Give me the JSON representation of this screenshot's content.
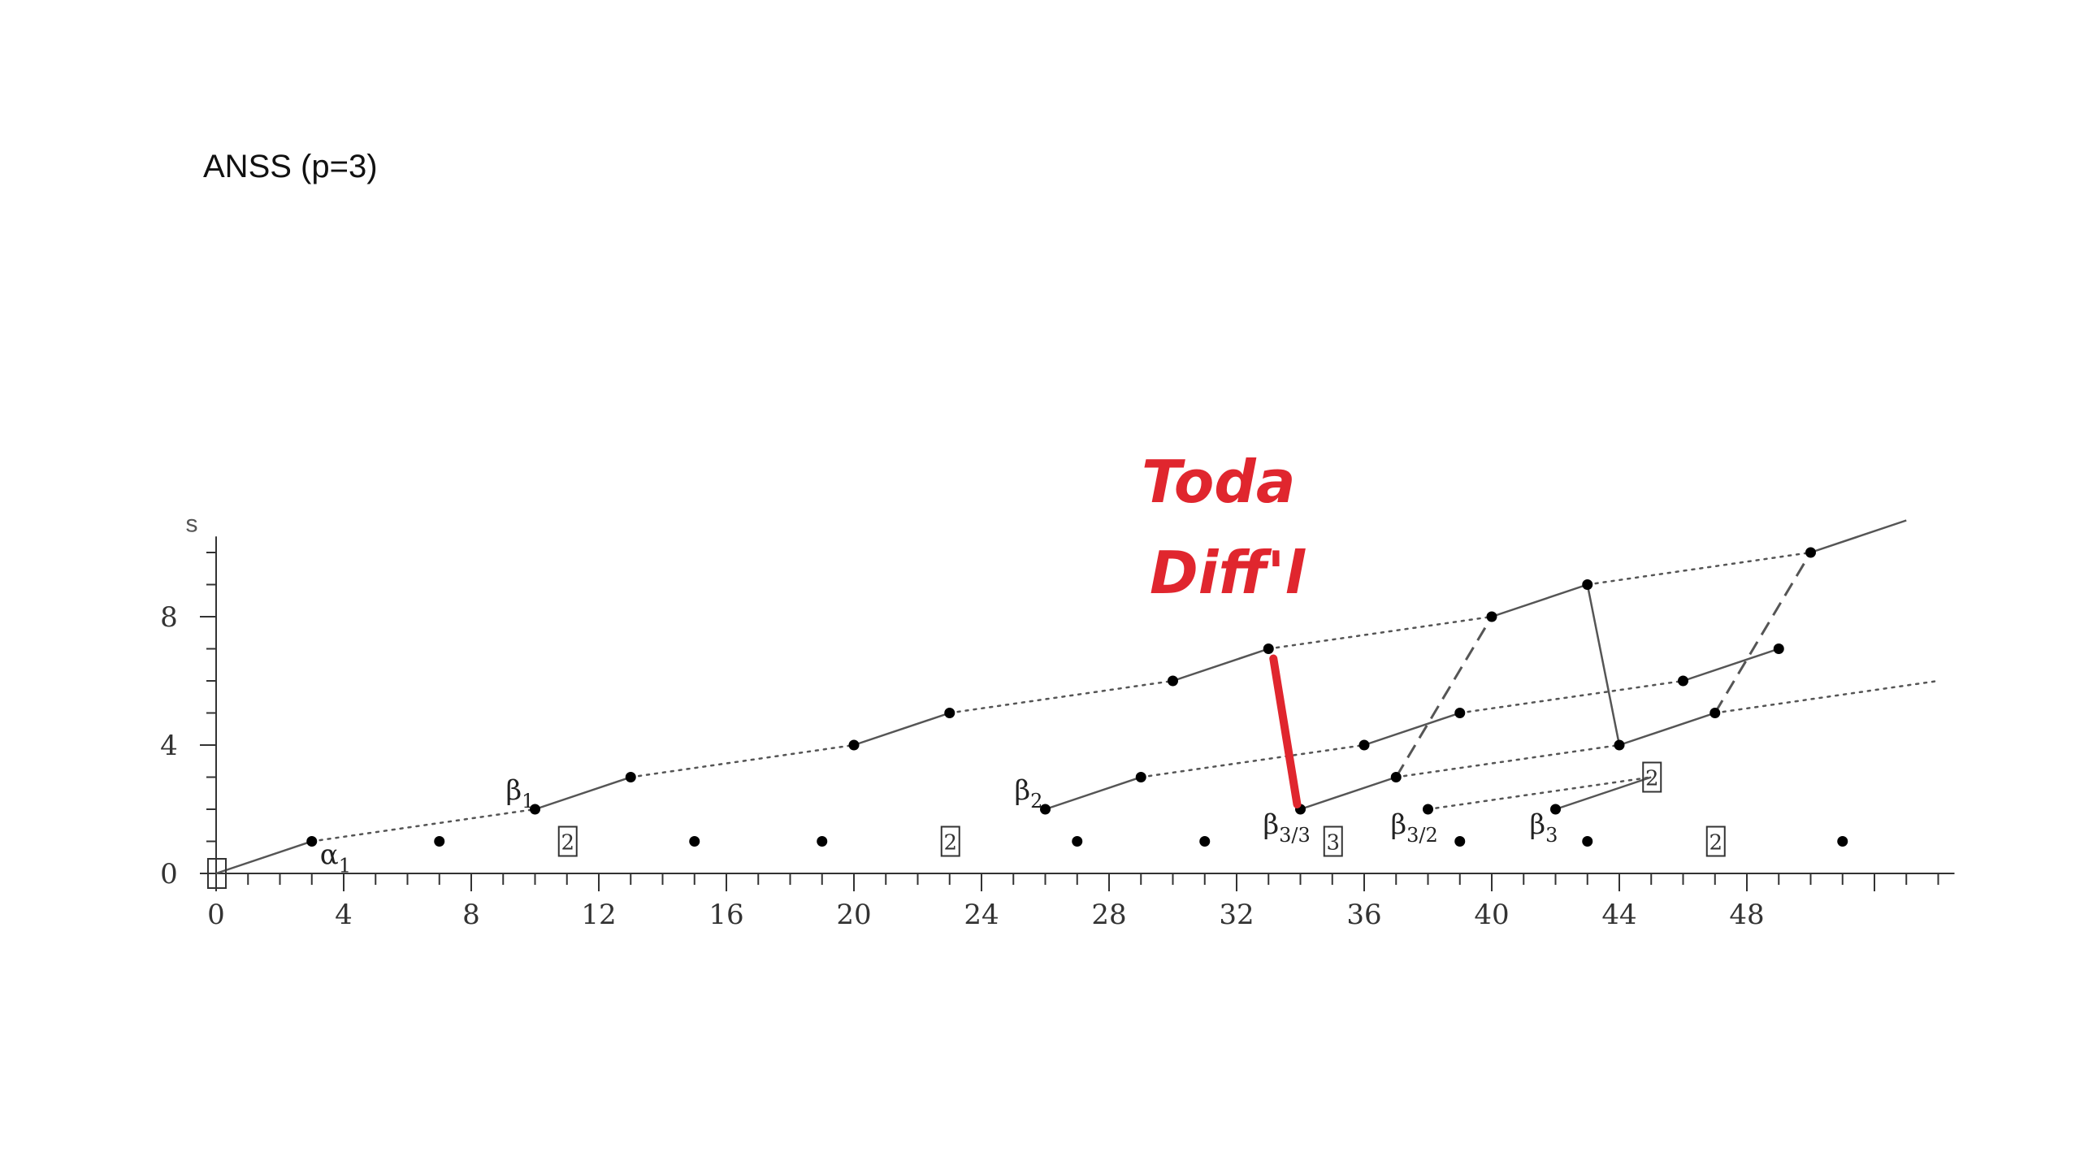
{
  "title": "ANSS (p=3)",
  "chart_data": {
    "type": "scatter",
    "xlabel": "",
    "ylabel": "s",
    "xlim": [
      0,
      54
    ],
    "ylim": [
      0,
      10.5
    ],
    "x_ticks": [
      0,
      4,
      8,
      12,
      16,
      20,
      24,
      28,
      32,
      36,
      40,
      44,
      48
    ],
    "y_ticks": [
      0,
      4,
      8
    ],
    "points": [
      [
        0,
        0
      ],
      [
        3,
        1
      ],
      [
        7,
        1
      ],
      [
        10,
        2
      ],
      [
        13,
        3
      ],
      [
        15,
        1
      ],
      [
        19,
        1
      ],
      [
        20,
        4
      ],
      [
        23,
        5
      ],
      [
        26,
        2
      ],
      [
        27,
        1
      ],
      [
        29,
        3
      ],
      [
        30,
        6
      ],
      [
        31,
        1
      ],
      [
        33,
        7
      ],
      [
        34,
        2
      ],
      [
        36,
        4
      ],
      [
        37,
        3
      ],
      [
        38,
        2
      ],
      [
        39,
        1
      ],
      [
        39,
        5
      ],
      [
        40,
        8
      ],
      [
        42,
        2
      ],
      [
        43,
        1
      ],
      [
        43,
        9
      ],
      [
        44,
        4
      ],
      [
        46,
        6
      ],
      [
        47,
        5
      ],
      [
        49,
        7
      ],
      [
        51,
        1
      ],
      [
        50,
        10
      ]
    ],
    "solid_lines": [
      [
        [
          0,
          0
        ],
        [
          3,
          1
        ]
      ],
      [
        [
          10,
          2
        ],
        [
          13,
          3
        ]
      ],
      [
        [
          20,
          4
        ],
        [
          23,
          5
        ]
      ],
      [
        [
          30,
          6
        ],
        [
          33,
          7
        ]
      ],
      [
        [
          40,
          8
        ],
        [
          43,
          9
        ]
      ],
      [
        [
          50,
          10
        ],
        [
          53,
          11
        ]
      ],
      [
        [
          26,
          2
        ],
        [
          29,
          3
        ]
      ],
      [
        [
          36,
          4
        ],
        [
          39,
          5
        ]
      ],
      [
        [
          46,
          6
        ],
        [
          49,
          7
        ]
      ],
      [
        [
          34,
          2
        ],
        [
          37,
          3
        ]
      ],
      [
        [
          44,
          4
        ],
        [
          47,
          5
        ]
      ],
      [
        [
          42,
          2
        ],
        [
          45,
          3
        ]
      ],
      [
        [
          43,
          9
        ],
        [
          44,
          4
        ]
      ]
    ],
    "dotted_lines": [
      [
        [
          3,
          1
        ],
        [
          10,
          2
        ]
      ],
      [
        [
          13,
          3
        ],
        [
          20,
          4
        ]
      ],
      [
        [
          23,
          5
        ],
        [
          30,
          6
        ]
      ],
      [
        [
          33,
          7
        ],
        [
          40,
          8
        ]
      ],
      [
        [
          43,
          9
        ],
        [
          50,
          10
        ]
      ],
      [
        [
          29,
          3
        ],
        [
          36,
          4
        ]
      ],
      [
        [
          39,
          5
        ],
        [
          46,
          6
        ]
      ],
      [
        [
          37,
          3
        ],
        [
          44,
          4
        ]
      ],
      [
        [
          47,
          5
        ],
        [
          54,
          6
        ]
      ],
      [
        [
          38,
          2
        ],
        [
          45,
          3
        ]
      ]
    ],
    "dashed_lines": [
      [
        [
          37,
          3
        ],
        [
          40,
          8
        ]
      ],
      [
        [
          47,
          5
        ],
        [
          50,
          10
        ]
      ]
    ],
    "labels": [
      {
        "base": "α",
        "sub": "1",
        "x": 3,
        "y": 1
      },
      {
        "base": "β",
        "sub": "1",
        "x": 10,
        "y": 2
      },
      {
        "base": "β",
        "sub": "2",
        "x": 26,
        "y": 2
      },
      {
        "base": "β",
        "sub": "3/3",
        "x": 34,
        "y": 2
      },
      {
        "base": "β",
        "sub": "3/2",
        "x": 38,
        "y": 2
      },
      {
        "base": "β",
        "sub": "3",
        "x": 42,
        "y": 2
      }
    ],
    "boxes": [
      {
        "text": "2",
        "x": 11,
        "y": 1
      },
      {
        "text": "2",
        "x": 23,
        "y": 1
      },
      {
        "text": "3",
        "x": 35,
        "y": 1
      },
      {
        "text": "2",
        "x": 47,
        "y": 1
      },
      {
        "text": "2",
        "x": 45,
        "y": 3
      },
      {
        "text": "",
        "x": 0,
        "y": 0
      }
    ],
    "annotation": {
      "text_lines": [
        "Toda",
        "Diff'l"
      ],
      "color": "#e0262e",
      "highlight_segment": [
        [
          33,
          7
        ],
        [
          34,
          2
        ]
      ]
    },
    "colors": {
      "line": "#555555",
      "point": "#000000",
      "annotation": "#e0262e"
    }
  }
}
